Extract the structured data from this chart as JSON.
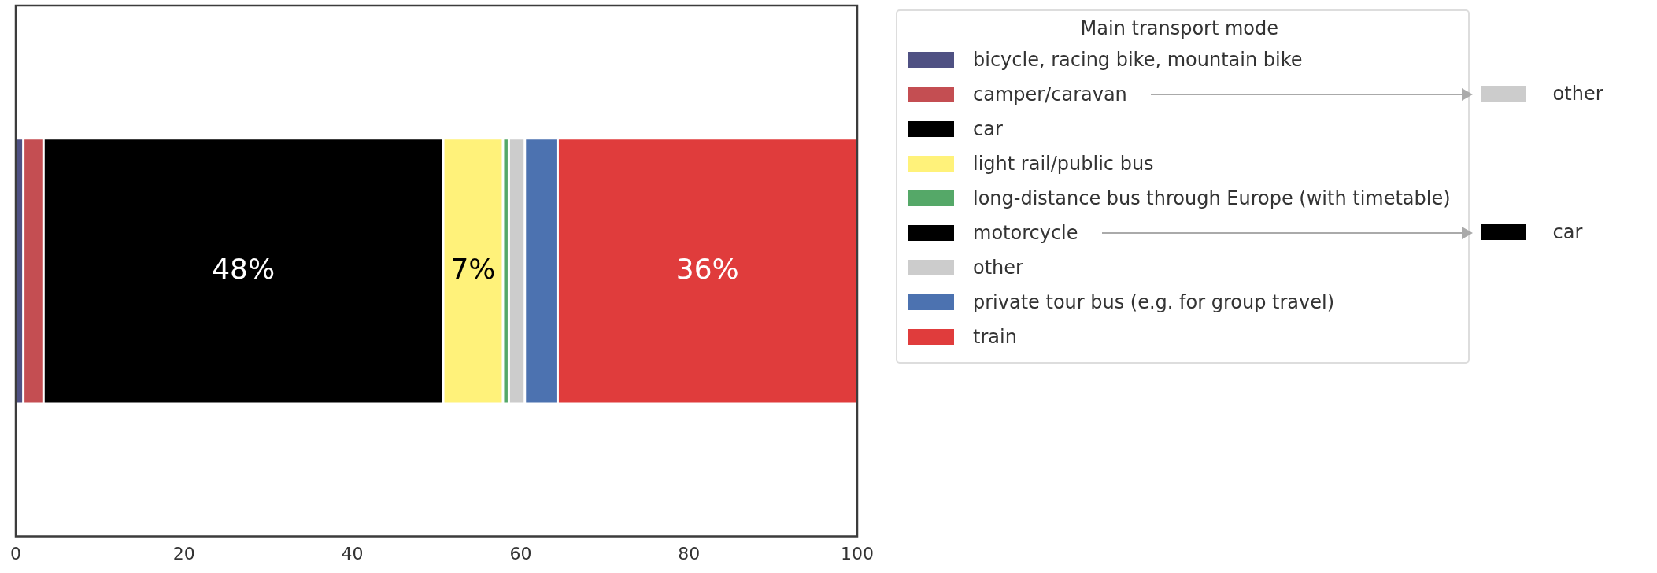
{
  "chart_data": {
    "type": "bar",
    "orientation": "horizontal",
    "stacked": true,
    "categories": [
      null
    ],
    "series": [
      {
        "name": "bicycle, racing bike, mountain bike",
        "color": "#4f5183",
        "values": [
          0.9
        ]
      },
      {
        "name": "camper/caravan",
        "color": "#c44e52",
        "values": [
          2.4
        ]
      },
      {
        "name": "car",
        "color": "#000000",
        "values": [
          47.5
        ],
        "value_labels": [
          "48%"
        ]
      },
      {
        "name": "light rail/public bus",
        "color": "#fff27a",
        "values": [
          7.1
        ],
        "value_labels": [
          "7%"
        ]
      },
      {
        "name": "long-distance bus through Europe (with timetable)",
        "color": "#55a868",
        "values": [
          0.7
        ]
      },
      {
        "name": "motorcycle",
        "color": "#000000",
        "values": [
          null
        ]
      },
      {
        "name": "other",
        "color": "#cccccc",
        "values": [
          1.9
        ]
      },
      {
        "name": "private tour bus (e.g. for group travel)",
        "color": "#4c72b0",
        "values": [
          3.9
        ]
      },
      {
        "name": "train",
        "color": "#e03c3c",
        "values": [
          35.6
        ],
        "value_labels": [
          "36%"
        ]
      }
    ],
    "xlim": [
      0,
      100
    ],
    "xticks": [
      0,
      20,
      40,
      60,
      80,
      100
    ],
    "tick_labels": "x",
    "legend": "right",
    "legend_title": "Main transport mode",
    "annotations": [
      "other",
      "car"
    ]
  }
}
